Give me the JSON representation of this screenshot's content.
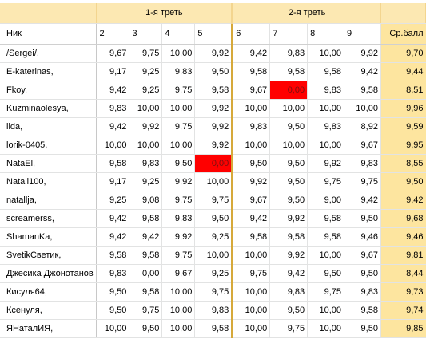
{
  "groups": {
    "third1": "1-я треть",
    "third2": "2-я треть"
  },
  "headers": [
    "Ник",
    "2",
    "3",
    "4",
    "5",
    "6",
    "7",
    "8",
    "9",
    "Ср.балл"
  ],
  "rows": [
    {
      "name": "/Sergei/,",
      "v": [
        "9,67",
        "9,75",
        "10,00",
        "9,92",
        "9,42",
        "9,83",
        "10,00",
        "9,92"
      ],
      "avg": "9,70"
    },
    {
      "name": "E-katerinas,",
      "v": [
        "9,17",
        "9,25",
        "9,83",
        "9,50",
        "9,58",
        "9,58",
        "9,58",
        "9,42"
      ],
      "avg": "9,44"
    },
    {
      "name": "Fkoy,",
      "v": [
        "9,42",
        "9,25",
        "9,75",
        "9,58",
        "9,67",
        "0,00",
        "9,83",
        "9,58"
      ],
      "avg": "8,51"
    },
    {
      "name": "Kuzminaolesya,",
      "v": [
        "9,83",
        "10,00",
        "10,00",
        "9,92",
        "10,00",
        "10,00",
        "10,00",
        "10,00"
      ],
      "avg": "9,96"
    },
    {
      "name": "lida,",
      "v": [
        "9,42",
        "9,92",
        "9,75",
        "9,92",
        "9,83",
        "9,50",
        "9,83",
        "8,92"
      ],
      "avg": "9,59"
    },
    {
      "name": "lorik-0405,",
      "v": [
        "10,00",
        "10,00",
        "10,00",
        "9,92",
        "10,00",
        "10,00",
        "10,00",
        "9,67"
      ],
      "avg": "9,95"
    },
    {
      "name": "NataEl,",
      "v": [
        "9,58",
        "9,83",
        "9,50",
        "0,00",
        "9,50",
        "9,50",
        "9,92",
        "9,83"
      ],
      "avg": "8,55"
    },
    {
      "name": "Natali100,",
      "v": [
        "9,17",
        "9,25",
        "9,92",
        "10,00",
        "9,92",
        "9,50",
        "9,75",
        "9,75"
      ],
      "avg": "9,50"
    },
    {
      "name": "natallja,",
      "v": [
        "9,25",
        "9,08",
        "9,75",
        "9,75",
        "9,67",
        "9,50",
        "9,00",
        "9,42"
      ],
      "avg": "9,42"
    },
    {
      "name": "screamerss,",
      "v": [
        "9,42",
        "9,58",
        "9,83",
        "9,50",
        "9,42",
        "9,92",
        "9,58",
        "9,50"
      ],
      "avg": "9,68"
    },
    {
      "name": "ShamanKa,",
      "v": [
        "9,42",
        "9,42",
        "9,92",
        "9,25",
        "9,58",
        "9,58",
        "9,58",
        "9,46"
      ],
      "avg": "9,46"
    },
    {
      "name": "SvetikСветик,",
      "v": [
        "9,58",
        "9,58",
        "9,75",
        "10,00",
        "10,00",
        "9,92",
        "10,00",
        "9,67"
      ],
      "avg": "9,81"
    },
    {
      "name": "Джесика Джонотанов",
      "v": [
        "9,83",
        "0,00",
        "9,67",
        "9,25",
        "9,75",
        "9,42",
        "9,50",
        "9,50"
      ],
      "avg": "8,44"
    },
    {
      "name": "Кисуля64,",
      "v": [
        "9,50",
        "9,58",
        "10,00",
        "9,75",
        "10,00",
        "9,83",
        "9,75",
        "9,83"
      ],
      "avg": "9,73"
    },
    {
      "name": "Ксенуля,",
      "v": [
        "9,50",
        "9,75",
        "10,00",
        "9,83",
        "10,00",
        "9,50",
        "10,00",
        "9,58"
      ],
      "avg": "9,74"
    },
    {
      "name": "ЯНаталИЯ,",
      "v": [
        "10,00",
        "9,50",
        "10,00",
        "9,58",
        "10,00",
        "9,75",
        "10,00",
        "9,50"
      ],
      "avg": "9,85"
    }
  ],
  "highlight_cells": [
    {
      "row": 2,
      "col": 5
    },
    {
      "row": 6,
      "col": 3
    }
  ],
  "colors": {
    "group_header": "#fce8b2",
    "average_column": "#fde59f",
    "zero_highlight": "#ff0000",
    "third_separator": "#d6a93a"
  }
}
